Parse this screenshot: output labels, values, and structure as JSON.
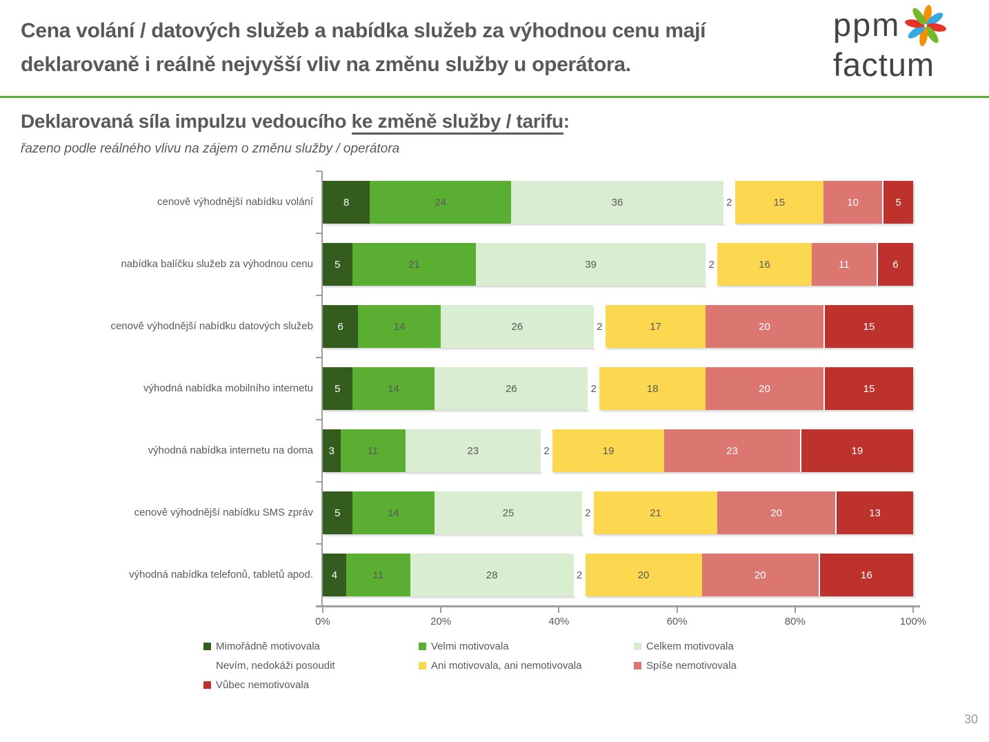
{
  "slide": {
    "title_lines": [
      "Cena volání / datových služeb a nabídka služeb za výhodnou cenu mají",
      "deklarovaně i reálně nejvyšší vliv na změnu služby u operátora."
    ],
    "page_number": "30"
  },
  "logo": {
    "word_top": "ppm",
    "word_bottom": "factum",
    "pinwheel_colors": [
      "#F39200",
      "#36A9E1",
      "#E5332A",
      "#76B82A",
      "#F39200",
      "#36A9E1",
      "#E5332A",
      "#76B82A"
    ]
  },
  "subtitle": {
    "lead": "Deklarovaná síla impulzu vedoucího ",
    "underlined": "ke změně služby / tarifu",
    "colon": ":",
    "note": "řazeno podle reálného vlivu na zájem o změnu služby / operátora"
  },
  "chart_data": {
    "type": "bar",
    "orientation": "horizontal",
    "stacked": true,
    "unit": "%",
    "xlim": [
      0,
      100
    ],
    "x_ticks": [
      "0%",
      "20%",
      "40%",
      "60%",
      "80%",
      "100%"
    ],
    "grid": false,
    "legend_position": "bottom",
    "categories": [
      "cenově výhodnější nabídku volání",
      "nabídka balíčku služeb za výhodnou cenu",
      "cenově výhodnější nabídku datových služeb",
      "výhodná nabídka mobilního internetu",
      "výhodná nabídka internetu na doma",
      "cenově výhodnější nabídku SMS zpráv",
      "výhodná nabídka telefonů, tabletů apod."
    ],
    "series": [
      {
        "name": "Mimořádně motivovala",
        "color": "#335C1E",
        "label_color": "#FFFFFF",
        "values": [
          8,
          5,
          6,
          5,
          3,
          5,
          4
        ]
      },
      {
        "name": "Velmi motivovala",
        "color": "#5AAE32",
        "label_color": "#595959",
        "values": [
          24,
          21,
          14,
          14,
          11,
          14,
          11
        ]
      },
      {
        "name": "Celkem motivovala",
        "color": "#D9EED1",
        "label_color": "#595959",
        "values": [
          36,
          39,
          26,
          26,
          23,
          25,
          28
        ]
      },
      {
        "name": "Nevím, nedokáži posoudit",
        "color": "#FFFFFF",
        "label_color": "#595959",
        "values": [
          2,
          2,
          2,
          2,
          2,
          2,
          2
        ]
      },
      {
        "name": "Ani motivovala, ani nemotivovala",
        "color": "#FBD84F",
        "label_color": "#595959",
        "values": [
          15,
          16,
          17,
          18,
          19,
          21,
          20
        ]
      },
      {
        "name": "Spíše nemotivovala",
        "color": "#DB7671",
        "label_color": "#FFFFFF",
        "values": [
          10,
          11,
          20,
          20,
          23,
          20,
          20
        ]
      },
      {
        "name": "Vůbec nemotivovala",
        "color": "#BE322D",
        "label_color": "#FFFFFF",
        "values": [
          5,
          6,
          15,
          15,
          19,
          13,
          16
        ]
      }
    ]
  },
  "colors": {
    "accent_rule_green": "#52B331",
    "text_gray": "#595959",
    "axis_gray": "#9D9D9D"
  }
}
